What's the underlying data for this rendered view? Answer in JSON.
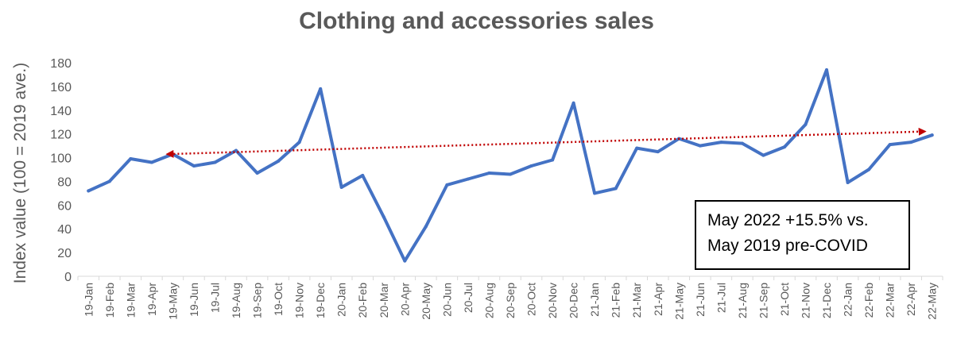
{
  "chart_data": {
    "type": "line",
    "title": "Clothing and accessories sales",
    "ylabel": "Index value (100 = 2019 ave.)",
    "xlabel": "",
    "ylim": [
      0,
      180
    ],
    "yticks": [
      0,
      20,
      40,
      60,
      80,
      100,
      120,
      140,
      160,
      180
    ],
    "grid": false,
    "categories": [
      "19-Jan",
      "19-Feb",
      "19-Mar",
      "19-Apr",
      "19-May",
      "19-Jun",
      "19-Jul",
      "19-Aug",
      "19-Sep",
      "19-Oct",
      "19-Nov",
      "19-Dec",
      "20-Jan",
      "20-Feb",
      "20-Mar",
      "20-Apr",
      "20-May",
      "20-Jun",
      "20-Jul",
      "20-Aug",
      "20-Sep",
      "20-Oct",
      "20-Nov",
      "20-Dec",
      "21-Jan",
      "21-Feb",
      "21-Mar",
      "21-Apr",
      "21-May",
      "21-Jun",
      "21-Jul",
      "21-Aug",
      "21-Sep",
      "21-Oct",
      "21-Nov",
      "21-Dec",
      "22-Jan",
      "22-Feb",
      "22-Mar",
      "22-Apr",
      "22-May"
    ],
    "series": [
      {
        "color": "#4472c4",
        "values": [
          72,
          80,
          99,
          96,
          103,
          93,
          96,
          106,
          87,
          97,
          113,
          158,
          75,
          85,
          50,
          13,
          42,
          77,
          82,
          87,
          86,
          93,
          98,
          146,
          70,
          74,
          108,
          105,
          116,
          110,
          113,
          112,
          102,
          109,
          128,
          174,
          79,
          90,
          111,
          113,
          119
        ]
      }
    ],
    "trendline": {
      "color": "#c00000",
      "style": "dotted",
      "from": {
        "x": "19-May",
        "y": 103
      },
      "to": {
        "x": "22-May",
        "y": 122
      }
    },
    "annotation": {
      "lines": [
        "May 2022 +15.5% vs.",
        "May 2019 pre-COVID"
      ]
    }
  }
}
